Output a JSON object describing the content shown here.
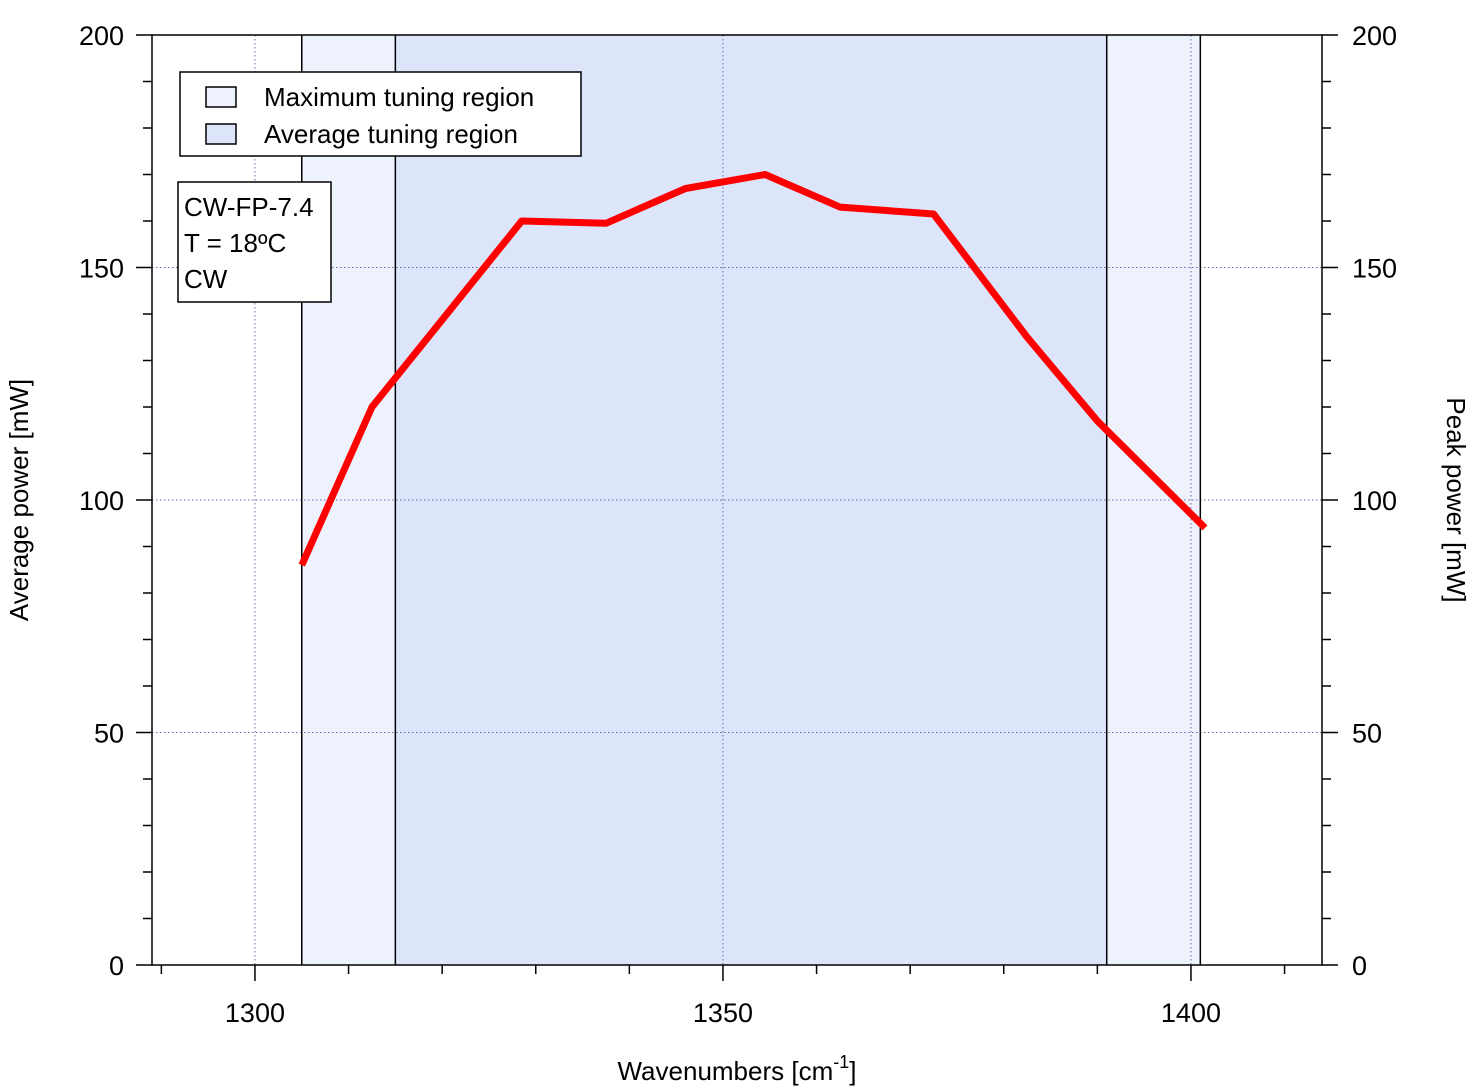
{
  "chart_data": {
    "type": "line",
    "xlabel": "Wavenumbers [cm",
    "xlabel_superscript": "-1",
    "xlabel_suffix": "]",
    "ylabel": "Average power [mW]",
    "y2label": "Peak power [mW]",
    "xlim": [
      1289,
      1414
    ],
    "ylim": [
      0,
      200
    ],
    "y2lim": [
      0,
      200
    ],
    "x_ticks": [
      1300,
      1350,
      1400
    ],
    "x_tick_labels": [
      "1300",
      "1350",
      "1400"
    ],
    "y_ticks": [
      0,
      50,
      100,
      150,
      200
    ],
    "y_tick_labels": [
      "0",
      "50",
      "100",
      "150",
      "200"
    ],
    "y2_tick_labels": [
      "0",
      "50",
      "100",
      "150",
      "200"
    ],
    "grid": true,
    "regions": [
      {
        "name": "Maximum tuning region",
        "x_start": 1305,
        "x_end": 1401,
        "color": "#eef2fd"
      },
      {
        "name": "Average tuning region",
        "x_start": 1315,
        "x_end": 1391,
        "color": "#dde5fb"
      }
    ],
    "series": [
      {
        "color": "#ff0000",
        "x": [
          1305,
          1312.5,
          1328.5,
          1337.5,
          1346,
          1354.5,
          1362.5,
          1372.5,
          1382.5,
          1390,
          1401.5
        ],
        "y": [
          86,
          120,
          160,
          159.5,
          167,
          170,
          163,
          161.5,
          135,
          117,
          94
        ]
      }
    ],
    "legend": {
      "position": "top-left",
      "entries": [
        "Maximum tuning region",
        "Average tuning region"
      ]
    },
    "annotation": {
      "lines": [
        "CW-FP-7.4",
        "T = 18ºC",
        "CW"
      ]
    }
  }
}
